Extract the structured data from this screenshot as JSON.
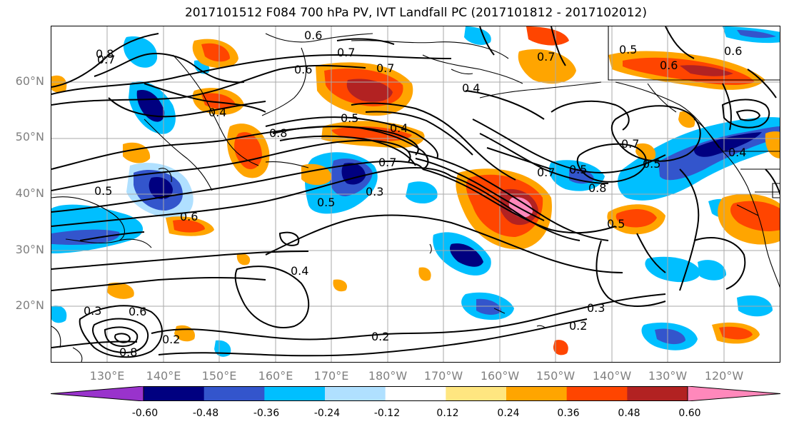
{
  "title": "2017101512 F084 700 hPa PV, IVT Landfall PC (2017101812 - 2017102012)",
  "lat_labels": [
    "60°N",
    "50°N",
    "40°N",
    "30°N",
    "20°N"
  ],
  "lon_labels": [
    "130°E",
    "140°E",
    "150°E",
    "160°E",
    "170°E",
    "180°W",
    "170°W",
    "160°W",
    "150°W",
    "140°W",
    "130°W",
    "120°W"
  ],
  "colorbar": {
    "ticks": [
      "-0.60",
      "-0.48",
      "-0.36",
      "-0.24",
      "-0.12",
      "0.12",
      "0.24",
      "0.36",
      "0.48",
      "0.60"
    ],
    "colors": [
      "#9933cc",
      "#000080",
      "#3355cc",
      "#00bfff",
      "#b0e0ff",
      "#ffffff",
      "#ffe680",
      "#ffa500",
      "#ff4500",
      "#b22222",
      "#ff88bb"
    ]
  },
  "contour_labels": {
    "l1": "0.6",
    "l2": "0.7",
    "l3": "0.8",
    "l4": "0.6",
    "l5": "0.7",
    "l6": "0.4",
    "l7": "0.7",
    "l8": "0.5",
    "l9": "0.6",
    "l10": "0.4",
    "l11": "0.5",
    "l12": "0.4",
    "l13": "0.8",
    "l14": "0.7",
    "l15": "0.5",
    "l16": "0.3",
    "l17": "0.6",
    "l18": "0.5",
    "l19": "0.4",
    "l20": "0.5",
    "l21": "0.7",
    "l22": "0.5",
    "l23": "0.8",
    "l24": "0.5",
    "l25": "0.7",
    "l26": "0.6",
    "l27": "0.4",
    "l28": "0.3",
    "l29": "0.6",
    "l30": "0.2",
    "l31": "0.2",
    "l32": "0.2",
    "l33": "0.3",
    "l34": "0.8",
    "l35": "0.7"
  }
}
